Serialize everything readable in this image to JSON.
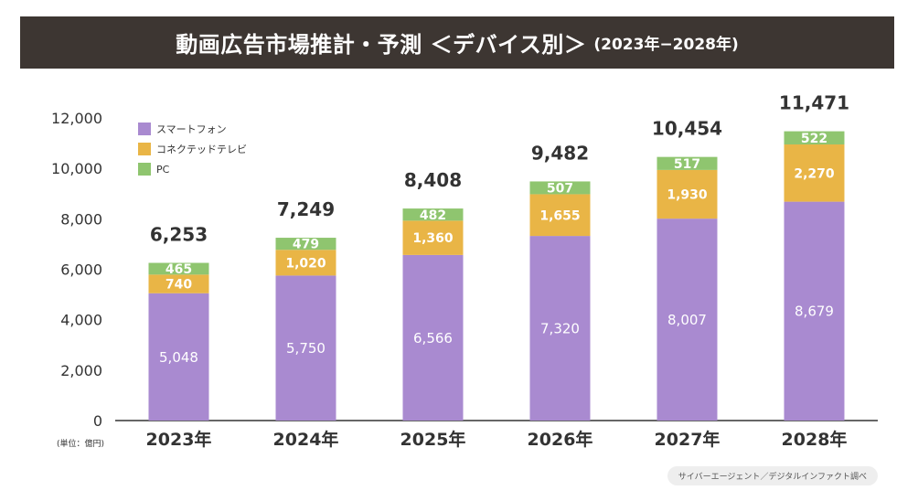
{
  "header": {
    "title": "動画広告市場推計・予測 ＜デバイス別＞",
    "subtitle": "(2023年−2028年)"
  },
  "source_note": "サイバーエージェント／デジタルインファクト調べ",
  "unit_label": "(単位：億円)",
  "colors": {
    "smartphone": "#a98ad0",
    "connected_tv": "#e9b546",
    "pc": "#8fc56f",
    "title_bg": "#3d3632"
  },
  "chart_data": {
    "type": "bar",
    "stacked": true,
    "categories": [
      "2023年",
      "2024年",
      "2025年",
      "2026年",
      "2027年",
      "2028年"
    ],
    "series": [
      {
        "name": "スマートフォン",
        "values": [
          5048,
          5750,
          6566,
          7320,
          8007,
          8679
        ],
        "labels": [
          "5,048",
          "5,750",
          "6,566",
          "7,320",
          "8,007",
          "8,679"
        ]
      },
      {
        "name": "コネクテッドテレビ",
        "values": [
          740,
          1020,
          1360,
          1655,
          1930,
          2270
        ],
        "labels": [
          "740",
          "1,020",
          "1,360",
          "1,655",
          "1,930",
          "2,270"
        ]
      },
      {
        "name": "PC",
        "values": [
          465,
          479,
          482,
          507,
          517,
          522
        ],
        "labels": [
          "465",
          "479",
          "482",
          "507",
          "517",
          "522"
        ]
      }
    ],
    "totals": [
      6253,
      7249,
      8408,
      9482,
      10454,
      11471
    ],
    "total_labels": [
      "6,253",
      "7,249",
      "8,408",
      "9,482",
      "10,454",
      "11,471"
    ],
    "ylim": [
      0,
      12000
    ],
    "yticks": [
      0,
      2000,
      4000,
      6000,
      8000,
      10000,
      12000
    ],
    "ytick_labels": [
      "0",
      "2,000",
      "4,000",
      "6,000",
      "8,000",
      "10,000",
      "12,000"
    ],
    "grid": false,
    "legend_position": "top-left"
  }
}
